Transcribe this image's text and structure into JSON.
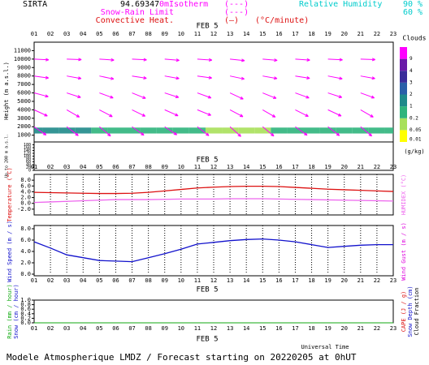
{
  "header": {
    "site": "SIRTA",
    "coords": "94.69347",
    "altitude": "0m",
    "legend": [
      "Isotherm",
      "Snow-Rain Limit",
      "Convective Heat."
    ],
    "legend_unit": "(°C/minute)",
    "rh_label": "Relative Humidity",
    "rh_levels": [
      "90 %",
      "60 %"
    ]
  },
  "chart_data": [
    {
      "type": "clouds",
      "date": "FEB 5",
      "categories": [
        "01",
        "02",
        "03",
        "04",
        "05",
        "06",
        "07",
        "08",
        "09",
        "10",
        "11",
        "12",
        "13",
        "14",
        "15",
        "16",
        "17",
        "18",
        "19",
        "20",
        "21",
        "22",
        "23"
      ],
      "ylabel": "Height (m a.s.l.)",
      "ylim": [
        200,
        12000
      ],
      "yticks": [
        1000,
        2000,
        3000,
        4000,
        5000,
        6000,
        7000,
        8000,
        9000,
        10000,
        11000
      ],
      "low_ylabel": "Up to 200 m a.s.l.",
      "low_ylim": [
        0,
        200
      ],
      "low_yticks": [
        0,
        20,
        40,
        60,
        80,
        100,
        120,
        140,
        160,
        180
      ],
      "colorbar_title": "Clouds",
      "colorbar_unit": "(g/kg)",
      "colorbar_levels": [
        0.01,
        0.05,
        0.2,
        1,
        2,
        3,
        4,
        9
      ],
      "colorbar_colors": [
        "#ffff00",
        "#a8e05a",
        "#2fb47c",
        "#1f8a8a",
        "#2a5fa8",
        "#3a2c9a",
        "#6a1aa8",
        "#ff00ff"
      ],
      "cloud_base": 1200,
      "cloud_top": 1900,
      "cloud_values": [
        1.2,
        1.1,
        1.3,
        1.2,
        0.9,
        0.8,
        0.6,
        0.5,
        0.4,
        0.3,
        0.2,
        0.15,
        0.12,
        0.1,
        0.15,
        0.3,
        0.5,
        0.6,
        0.7,
        0.8,
        0.8,
        0.7,
        0.6
      ],
      "arrow_color": "#ff00ff",
      "arrow_levels": [
        10000,
        8000,
        6000,
        4000,
        2000
      ],
      "arrow_hours": [
        1,
        3,
        5,
        7,
        9,
        11,
        13,
        15,
        17,
        19,
        21
      ],
      "arrow_directions": [
        [
          -3,
          -2,
          -4,
          -3,
          -5,
          -4,
          -6,
          -5,
          -4,
          -3,
          -2
        ],
        [
          -8,
          -10,
          -12,
          -9,
          -10,
          -8,
          -12,
          -10,
          -9,
          -11,
          -10
        ],
        [
          -15,
          -18,
          -20,
          -22,
          -18,
          -20,
          -25,
          -22,
          -20,
          -18,
          -20
        ],
        [
          -25,
          -30,
          -28,
          -26,
          -24,
          -22,
          -28,
          -30,
          -27,
          -25,
          -30
        ],
        [
          -35,
          -38,
          -40,
          -36,
          -34,
          -38,
          -42,
          -40,
          -36,
          -38,
          -40
        ]
      ]
    },
    {
      "type": "line",
      "ylabel": "Temperature (°C)",
      "y2label": "HUMIDEX (°C)",
      "ylim": [
        -4,
        10
      ],
      "yticks": [
        -2.0,
        0.0,
        2.0,
        4.0,
        6.0,
        8.0
      ],
      "grid": true,
      "series": [
        {
          "name": "Temperature",
          "color": "#dd1111",
          "values": [
            3.8,
            3.7,
            3.6,
            3.5,
            3.4,
            3.4,
            3.5,
            3.8,
            4.3,
            4.8,
            5.3,
            5.6,
            5.8,
            5.9,
            5.9,
            5.8,
            5.5,
            5.2,
            4.9,
            4.7,
            4.5,
            4.3,
            4.1
          ]
        },
        {
          "name": "HUMIDEX",
          "color": "#ee66ee",
          "values": [
            0.3,
            0.5,
            0.7,
            0.9,
            1.1,
            1.3,
            1.3,
            1.3,
            1.4,
            1.5,
            1.5,
            1.5,
            1.6,
            1.6,
            1.6,
            1.5,
            1.4,
            1.3,
            1.2,
            1.1,
            1.0,
            0.9,
            0.8
          ]
        }
      ]
    },
    {
      "type": "line",
      "ylabel": "Wind Speed (m / s)",
      "y2label": "Wind Gust (m / s)",
      "ylim": [
        0,
        8
      ],
      "yticks": [
        0.0,
        2.0,
        4.0,
        6.0,
        8.0
      ],
      "grid": true,
      "series": [
        {
          "name": "Wind Speed",
          "color": "#1111cc",
          "values": [
            5.7,
            4.6,
            3.4,
            2.9,
            2.4,
            2.3,
            2.2,
            2.9,
            3.6,
            4.4,
            5.3,
            5.6,
            5.9,
            6.1,
            6.2,
            6.0,
            5.7,
            5.2,
            4.7,
            4.9,
            5.1,
            5.2,
            5.2
          ]
        }
      ]
    },
    {
      "type": "line",
      "ylabel": "Rain (mm / hour)",
      "ylabel2": "Snow (cm / hour)",
      "y2label": "CAPE (J / g)",
      "y2label2": "Snow Depth (cm)",
      "y2label3": "Cloud Fraction",
      "ylim": [
        0,
        1
      ],
      "yticks": [
        0.0,
        0.2,
        0.4,
        0.6,
        0.8,
        1.0
      ],
      "xlabel": "Universal Time",
      "grid": false,
      "series": [
        {
          "name": "Rain",
          "color": "#11aa11",
          "values": [
            0,
            0,
            0,
            0,
            0,
            0,
            0,
            0,
            0,
            0,
            0,
            0,
            0,
            0,
            0,
            0,
            0,
            0,
            0,
            0,
            0,
            0,
            0
          ]
        }
      ]
    }
  ],
  "footer": "Modele Atmospherique LMDZ / Forecast starting on 20220205 at 0hUT"
}
